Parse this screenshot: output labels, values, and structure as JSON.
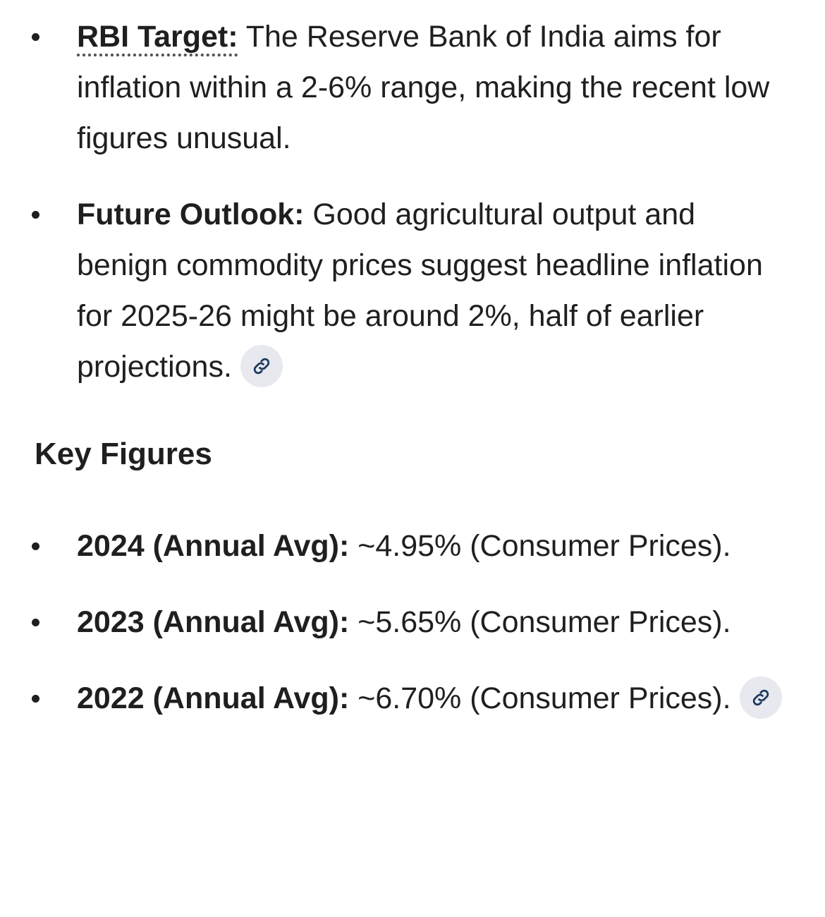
{
  "sections": [
    {
      "items": [
        {
          "label": "RBI Target:",
          "text": "The Reserve Bank of India aims for inflation within a 2-6% range, making the recent low figures unusual."
        },
        {
          "label": "Future Outlook:",
          "text": "Good agricultural output and benign commodity prices suggest headline inflation for 2025-26 might be around 2%, half of earlier projections."
        }
      ]
    },
    {
      "heading": "Key Figures",
      "items": [
        {
          "label": "2024 (Annual Avg):",
          "text": "~4.95% (Consumer Prices)."
        },
        {
          "label": "2023 (Annual Avg):",
          "text": "~5.65% (Consumer Prices)."
        },
        {
          "label": "2022 (Annual Avg):",
          "text": "~6.70% (Consumer Prices)."
        }
      ]
    }
  ]
}
